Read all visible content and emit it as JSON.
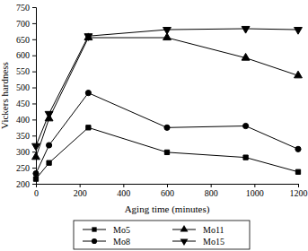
{
  "chart_data": {
    "type": "line",
    "x_label": "Aging time (minutes)",
    "y_label": "Vickers hardness",
    "x": [
      0,
      60,
      240,
      600,
      960,
      1200
    ],
    "series": [
      {
        "name": "Mo5",
        "color": "#000000",
        "marker": "square",
        "values": [
          215,
          265,
          375,
          298,
          282,
          237
        ]
      },
      {
        "name": "Mo8",
        "color": "#000000",
        "marker": "circle",
        "values": [
          232,
          320,
          483,
          375,
          380,
          308
        ]
      },
      {
        "name": "Mo11",
        "color": "#000000",
        "marker": "triangle",
        "values": [
          283,
          403,
          655,
          655,
          592,
          537
        ]
      },
      {
        "name": "Mo15",
        "color": "#000000",
        "marker": "triangle-down",
        "values": [
          318,
          418,
          660,
          680,
          683,
          680
        ]
      }
    ],
    "xlim": [
      0,
      1200
    ],
    "xticks": [
      0,
      200,
      400,
      600,
      800,
      1000,
      1200
    ],
    "ylim": [
      200,
      750
    ],
    "yticks": [
      200,
      250,
      300,
      350,
      400,
      450,
      500,
      550,
      600,
      650,
      700,
      750
    ],
    "legend": "bottom",
    "grid": false
  }
}
